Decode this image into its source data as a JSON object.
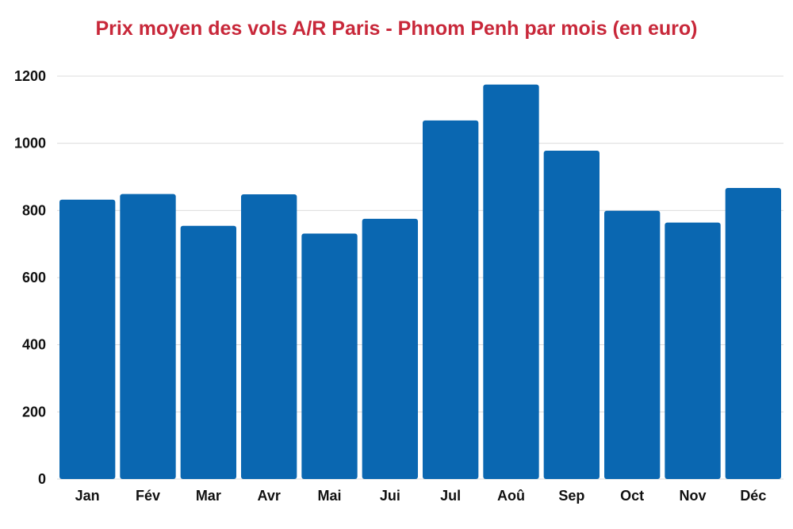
{
  "colors": {
    "title": "#c8283a",
    "bar": "#0a67b1",
    "grid": "#dcdcdc",
    "text": "#111111"
  },
  "chart_data": {
    "type": "bar",
    "title": "Prix moyen des vols A/R Paris - Phnom Penh par mois (en euro)",
    "xlabel": "",
    "ylabel": "",
    "categories": [
      "Jan",
      "Fév",
      "Mar",
      "Avr",
      "Mai",
      "Jui",
      "Jul",
      "Aoû",
      "Sep",
      "Oct",
      "Nov",
      "Déc"
    ],
    "values": [
      832,
      849,
      754,
      848,
      731,
      775,
      1068,
      1175,
      978,
      799,
      764,
      867
    ],
    "ylim": [
      0,
      1200
    ],
    "yticks": [
      0,
      200,
      400,
      600,
      800,
      1000,
      1200
    ],
    "grid": true,
    "legend": "none"
  }
}
